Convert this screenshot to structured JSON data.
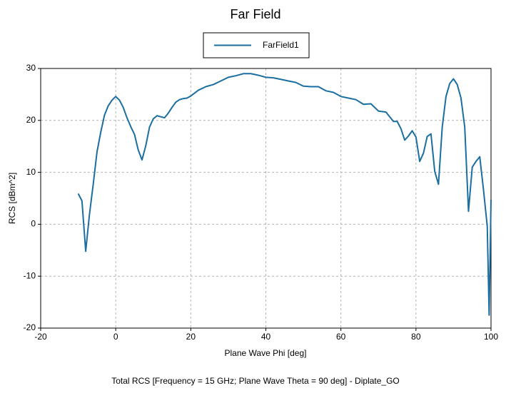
{
  "chart_data": {
    "type": "line",
    "title": "Far Field",
    "x_label": "Plane Wave Phi [deg]",
    "y_label": "RCS [dBm^2]",
    "footer": "Total RCS [Frequency = 15 GHz; Plane Wave Theta = 90 deg] - Diplate_GO",
    "xlim": [
      -20,
      100
    ],
    "xticks": [
      -20,
      0,
      20,
      40,
      60,
      80,
      100
    ],
    "ylim": [
      -20,
      30
    ],
    "yticks": [
      -20,
      -10,
      0,
      10,
      20,
      30
    ],
    "grid": true,
    "x": [
      -10,
      -9,
      -8,
      -7,
      -6,
      -5,
      -4,
      -3,
      -2,
      -1,
      0,
      1,
      2,
      3,
      4,
      5,
      6,
      7,
      8,
      9,
      10,
      11,
      12,
      13,
      14,
      15,
      16,
      17,
      18,
      19,
      20,
      22,
      24,
      26,
      28,
      30,
      32,
      34,
      36,
      38,
      40,
      42,
      44,
      46,
      48,
      50,
      52,
      54,
      56,
      58,
      60,
      62,
      64,
      66,
      68,
      70,
      72,
      73,
      74,
      75,
      76,
      77,
      78,
      79,
      80,
      81,
      82,
      83,
      84,
      85,
      86,
      87,
      88,
      89,
      90,
      91,
      92,
      93,
      94,
      95,
      96,
      97,
      98,
      99,
      99.5,
      100
    ],
    "series": [
      {
        "name": "FarField1",
        "color": "#1a6ea0",
        "values": [
          5.9,
          4.5,
          -5.2,
          1.9,
          7.7,
          13.9,
          17.7,
          21,
          22.8,
          23.9,
          24.6,
          23.9,
          22.5,
          20.5,
          18.8,
          17.3,
          14.3,
          12.4,
          15.1,
          18.7,
          20.3,
          20.9,
          20.7,
          20.5,
          21.4,
          22.5,
          23.5,
          24,
          24.2,
          24.3,
          24.7,
          25.8,
          26.5,
          26.9,
          27.6,
          28.3,
          28.6,
          29,
          29,
          28.7,
          28.3,
          28.2,
          27.9,
          27.6,
          27.3,
          26.6,
          26.5,
          26.5,
          25.7,
          25.4,
          24.6,
          24.3,
          24,
          23.1,
          23.2,
          21.8,
          21.6,
          20.7,
          19.8,
          19.8,
          18.4,
          16.2,
          17,
          18,
          16.8,
          12.1,
          13.7,
          16.9,
          17.4,
          10.2,
          7.7,
          18.7,
          24.6,
          27.1,
          28,
          26.9,
          24.3,
          18.7,
          2.5,
          11,
          12.1,
          13,
          6.6,
          -0.4,
          -17.5,
          4.7
        ]
      }
    ]
  }
}
